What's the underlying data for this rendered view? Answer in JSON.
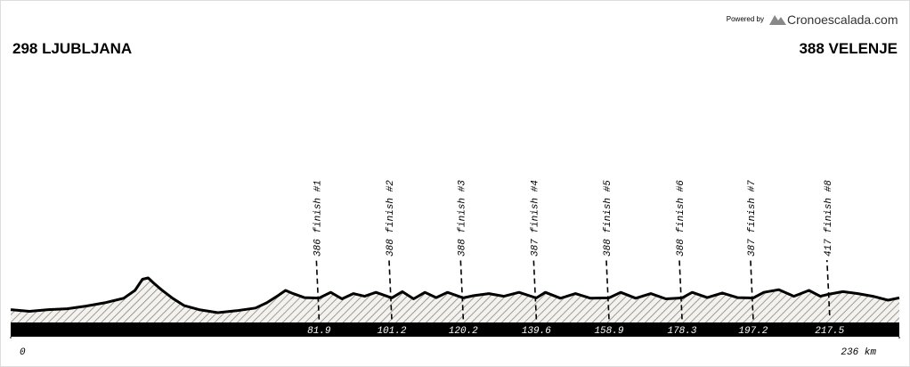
{
  "powered_by": "Powered by",
  "brand": "Cronoescalada.com",
  "chart_data": {
    "type": "profile",
    "start_label": "298 LJUBLJANA",
    "end_label": "388 VELENJE",
    "x": [
      0,
      5,
      10,
      15,
      20,
      25,
      30,
      33,
      35,
      36.5,
      38,
      40,
      43,
      46,
      50,
      55,
      60,
      65,
      68,
      71,
      73,
      75,
      78,
      81.9,
      85,
      88,
      91,
      94,
      97,
      101.2,
      104,
      107,
      110,
      113,
      116,
      120.2,
      123,
      127,
      131,
      135,
      139.6,
      142,
      146,
      150,
      154,
      158.9,
      162,
      166,
      170,
      174,
      178.3,
      181,
      185,
      189,
      193,
      197.2,
      200,
      204,
      208,
      212,
      215,
      217.5,
      221,
      225,
      229,
      233,
      236
    ],
    "values": [
      298,
      285,
      298,
      305,
      325,
      350,
      385,
      445,
      530,
      540,
      500,
      450,
      385,
      330,
      298,
      275,
      290,
      310,
      350,
      405,
      445,
      420,
      390,
      386,
      430,
      380,
      420,
      400,
      430,
      388,
      435,
      380,
      430,
      390,
      430,
      388,
      405,
      420,
      400,
      430,
      387,
      430,
      385,
      420,
      385,
      388,
      430,
      385,
      420,
      380,
      388,
      430,
      390,
      425,
      390,
      387,
      430,
      450,
      400,
      445,
      400,
      417,
      435,
      420,
      400,
      370,
      388
    ],
    "color": "#000000",
    "markers": [
      {
        "km": 81.9,
        "elevation": 386,
        "name": "finish #1"
      },
      {
        "km": 101.2,
        "elevation": 388,
        "name": "finish #2"
      },
      {
        "km": 120.2,
        "elevation": 388,
        "name": "finish #3"
      },
      {
        "km": 139.6,
        "elevation": 387,
        "name": "finish #4"
      },
      {
        "km": 158.9,
        "elevation": 388,
        "name": "finish #5"
      },
      {
        "km": 178.3,
        "elevation": 388,
        "name": "finish #6"
      },
      {
        "km": 197.2,
        "elevation": 387,
        "name": "finish #7"
      },
      {
        "km": 217.5,
        "elevation": 417,
        "name": "finish #8"
      }
    ],
    "xlim": [
      0,
      236
    ],
    "ylim": [
      200,
      1000
    ],
    "xticks": [
      0,
      {
        "value": 236,
        "label": "236 km"
      }
    ]
  }
}
